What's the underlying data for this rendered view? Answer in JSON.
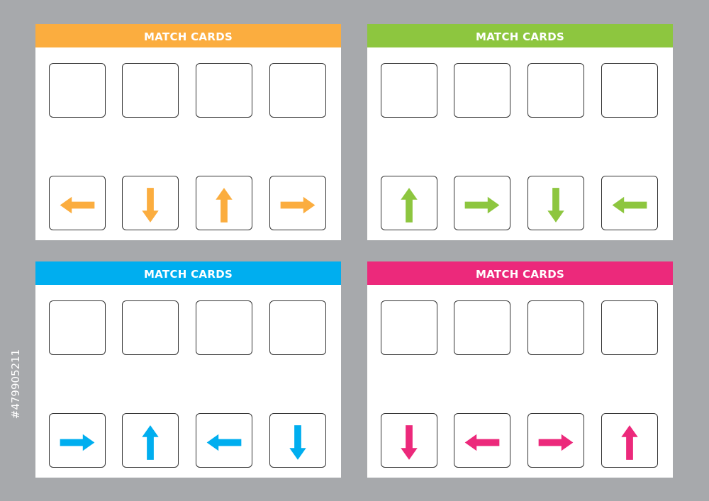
{
  "panels": [
    {
      "title": "MATCH CARDS",
      "color": "#fbad3f",
      "arrows": [
        "left",
        "down",
        "up",
        "right"
      ]
    },
    {
      "title": "MATCH CARDS",
      "color": "#8dc63f",
      "arrows": [
        "up",
        "right",
        "down",
        "left"
      ]
    },
    {
      "title": "MATCH CARDS",
      "color": "#00aeef",
      "arrows": [
        "right",
        "up",
        "left",
        "down"
      ]
    },
    {
      "title": "MATCH CARDS",
      "color": "#ec297b",
      "arrows": [
        "down",
        "left",
        "right",
        "up"
      ]
    }
  ],
  "stock_id": "#479905211"
}
